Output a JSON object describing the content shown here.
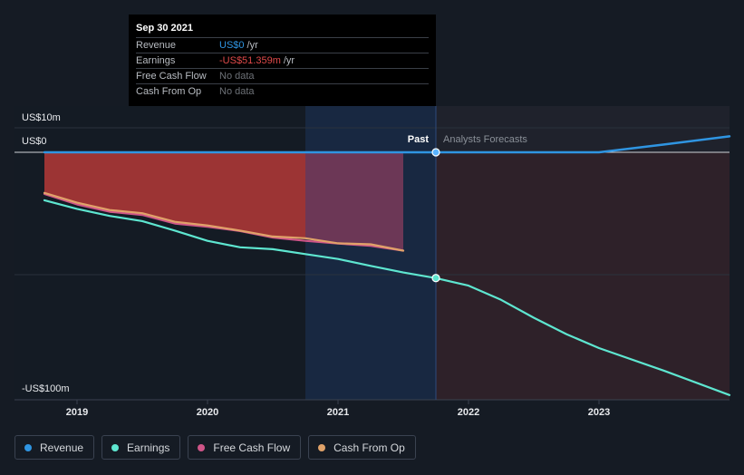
{
  "tooltip": {
    "date": "Sep 30 2021",
    "rows": [
      {
        "label": "Revenue",
        "value": "US$0",
        "unit": "/yr",
        "color": "#2f95e2"
      },
      {
        "label": "Earnings",
        "value": "-US$51.359m",
        "unit": "/yr",
        "color": "#e04a4a"
      },
      {
        "label": "Free Cash Flow",
        "value": "No data",
        "unit": "",
        "color": "#6d7177"
      },
      {
        "label": "Cash From Op",
        "value": "No data",
        "unit": "",
        "color": "#6d7177"
      }
    ]
  },
  "chart_data": {
    "type": "line",
    "y_axis_labels": [
      "US$10m",
      "US$0",
      "-US$100m"
    ],
    "ylim": [
      -100,
      10
    ],
    "xlim": [
      2018.75,
      2024.0
    ],
    "x_ticks": [
      2019,
      2020,
      2021,
      2022,
      2023
    ],
    "x_tick_labels": [
      "2019",
      "2020",
      "2021",
      "2022",
      "2023"
    ],
    "divider_x": 2021.75,
    "past_label": "Past",
    "forecast_label": "Analysts Forecasts",
    "series": [
      {
        "name": "Revenue",
        "color": "#2f95e2",
        "x": [
          2018.75,
          2021.75,
          2023.0,
          2023.5,
          2024.0
        ],
        "y": [
          0,
          0,
          0,
          3.2,
          6.5
        ]
      },
      {
        "name": "Earnings",
        "color": "#5ee6d0",
        "x": [
          2018.75,
          2019.0,
          2019.25,
          2019.5,
          2019.75,
          2020.0,
          2020.25,
          2020.5,
          2020.75,
          2021.0,
          2021.25,
          2021.5,
          2021.75,
          2022.0,
          2022.25,
          2022.5,
          2022.75,
          2023.0,
          2023.5,
          2024.0
        ],
        "y": [
          -19.6,
          -23.1,
          -26.0,
          -28.1,
          -32.0,
          -36.2,
          -38.8,
          -39.6,
          -41.6,
          -43.6,
          -46.4,
          -49.1,
          -51.4,
          -54.5,
          -60.3,
          -67.6,
          -74.3,
          -80.0,
          -89.3,
          -99.2
        ]
      },
      {
        "name": "Free Cash Flow",
        "color": "#cf5588",
        "x": [
          2018.75,
          2019.0,
          2019.25,
          2019.5,
          2019.75,
          2020.0,
          2020.25,
          2020.5,
          2020.75,
          2021.0,
          2021.25,
          2021.5
        ],
        "y": [
          -17.0,
          -21.3,
          -24.3,
          -25.6,
          -29.1,
          -30.4,
          -32.2,
          -34.8,
          -36.2,
          -37.3,
          -38.2,
          -40.2
        ]
      },
      {
        "name": "Cash From Op",
        "color": "#e0a269",
        "x": [
          2018.75,
          2019.0,
          2019.25,
          2019.5,
          2019.75,
          2020.0,
          2020.25,
          2020.5,
          2020.75,
          2021.0,
          2021.25,
          2021.5
        ],
        "y": [
          -16.6,
          -20.6,
          -23.6,
          -24.9,
          -28.4,
          -29.9,
          -32.0,
          -34.4,
          -35.1,
          -37.2,
          -37.6,
          -40.2
        ]
      }
    ]
  },
  "legend": [
    {
      "label": "Revenue",
      "color": "#2f95e2"
    },
    {
      "label": "Earnings",
      "color": "#5ee6d0"
    },
    {
      "label": "Free Cash Flow",
      "color": "#cf5588"
    },
    {
      "label": "Cash From Op",
      "color": "#e0a269"
    }
  ]
}
